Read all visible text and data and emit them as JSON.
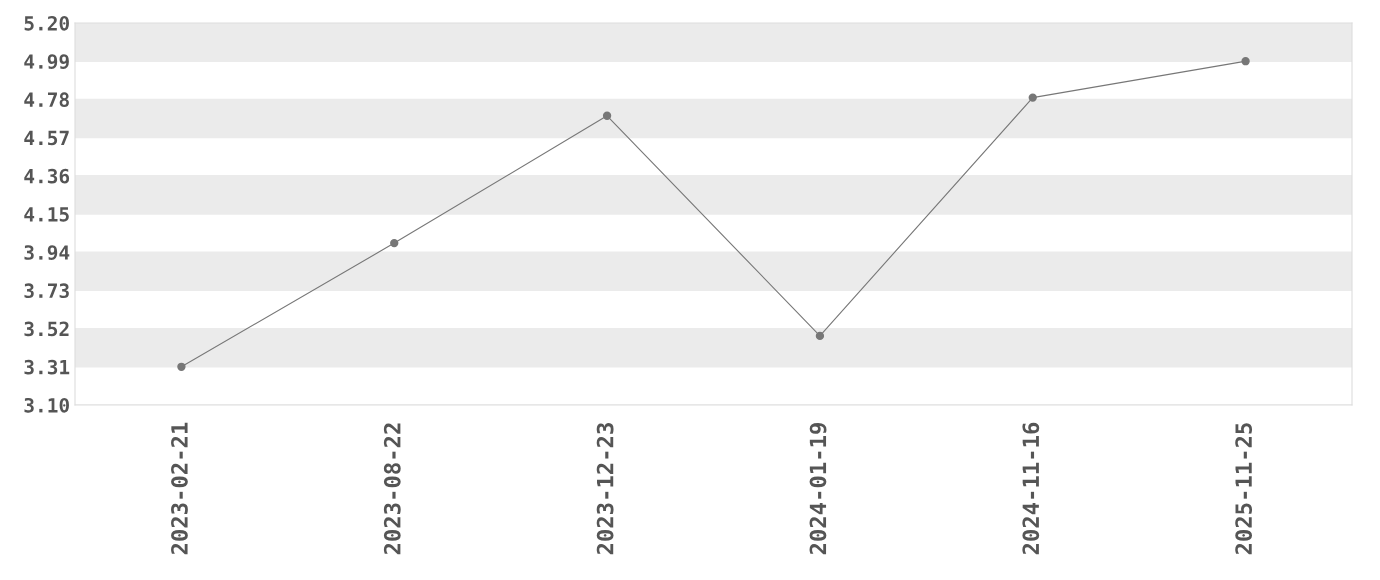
{
  "chart_data": {
    "type": "line",
    "categories": [
      "2023-02-21",
      "2023-08-22",
      "2023-12-23",
      "2024-01-19",
      "2024-11-16",
      "2025-11-25"
    ],
    "series": [
      {
        "color": "#777777",
        "values": [
          3.31,
          3.99,
          4.69,
          3.48,
          4.79,
          4.99
        ]
      }
    ],
    "ylim": [
      3.1,
      5.2
    ],
    "yticks": [
      {
        "value": 3.1,
        "label": "3.10"
      },
      3.31,
      3.52,
      3.73,
      3.94,
      4.15,
      4.36,
      4.57,
      4.78,
      4.99,
      {
        "value": 5.2,
        "label": "5.20"
      }
    ],
    "grid": "y",
    "marker": "circle",
    "line_style": "solid"
  }
}
